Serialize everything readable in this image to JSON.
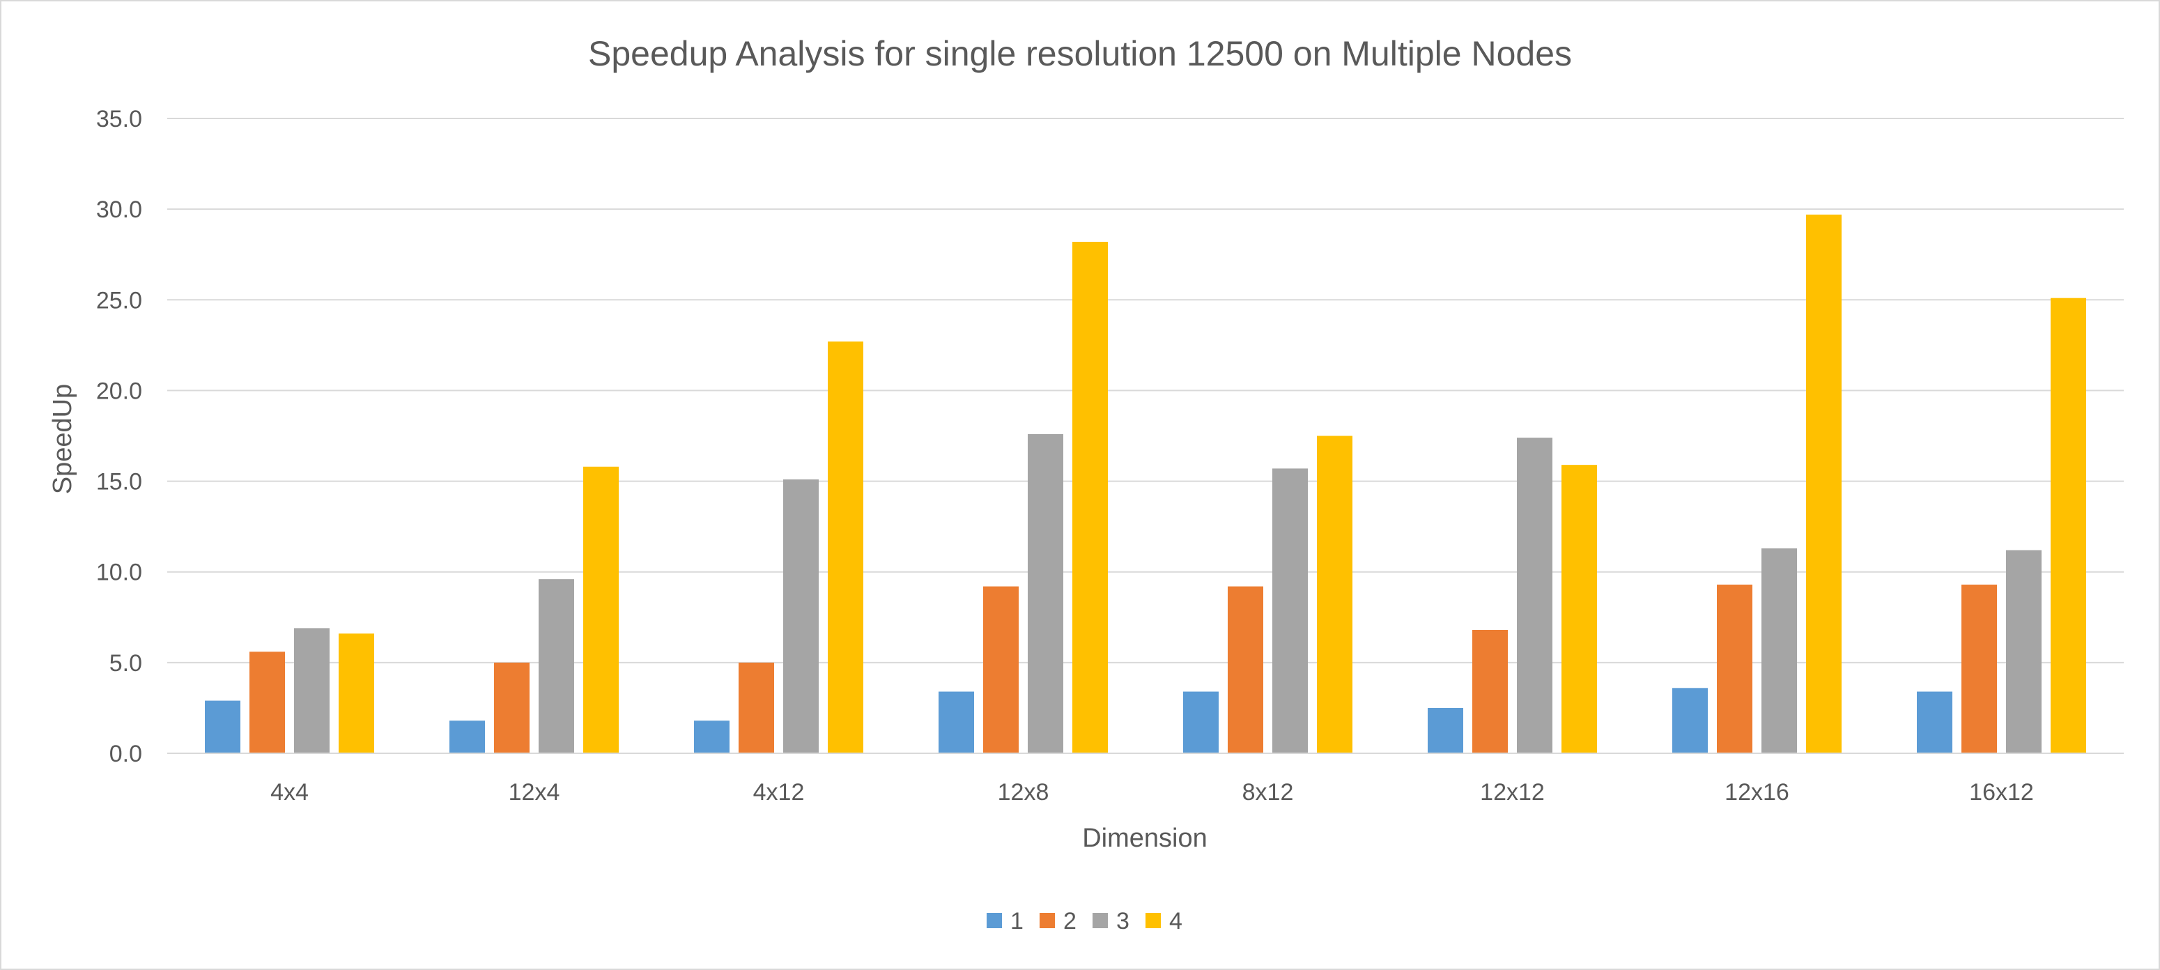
{
  "chart_data": {
    "type": "bar",
    "title": "Speedup Analysis for single resolution 12500 on Multiple Nodes",
    "xlabel": "Dimension",
    "ylabel": "SpeedUp",
    "ylim": [
      0,
      35
    ],
    "yticks": [
      "0.0",
      "5.0",
      "10.0",
      "15.0",
      "20.0",
      "25.0",
      "30.0",
      "35.0"
    ],
    "grid": true,
    "legend_position": "bottom",
    "categories": [
      "4x4",
      "12x4",
      "4x12",
      "12x8",
      "8x12",
      "12x12",
      "12x16",
      "16x12"
    ],
    "series": [
      {
        "name": "1",
        "color": "#5b9bd5",
        "values": [
          2.9,
          1.8,
          1.8,
          3.4,
          3.4,
          2.5,
          3.6,
          3.4
        ]
      },
      {
        "name": "2",
        "color": "#ed7d31",
        "values": [
          5.6,
          5.0,
          5.0,
          9.2,
          9.2,
          6.8,
          9.3,
          9.3
        ]
      },
      {
        "name": "3",
        "color": "#a5a5a5",
        "values": [
          6.9,
          9.6,
          15.1,
          17.6,
          15.7,
          17.4,
          11.3,
          11.2
        ]
      },
      {
        "name": "4",
        "color": "#ffc000",
        "values": [
          6.6,
          15.8,
          22.7,
          28.2,
          17.5,
          15.9,
          29.7,
          25.1
        ]
      }
    ]
  }
}
